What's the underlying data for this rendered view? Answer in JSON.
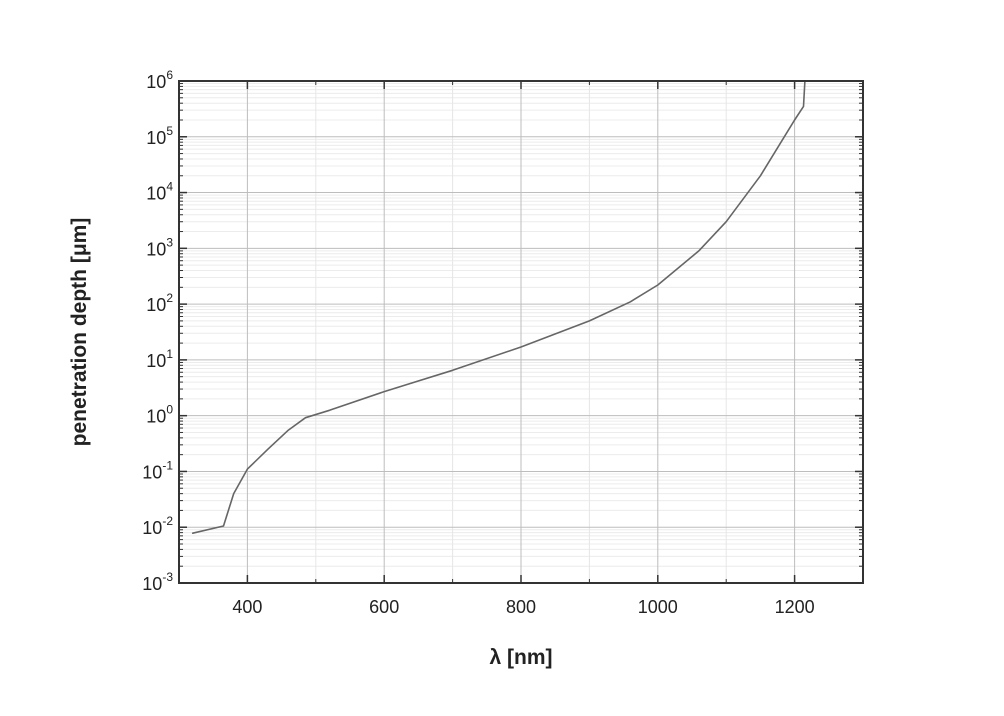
{
  "chart_data": {
    "type": "line",
    "title": "",
    "xlabel": "λ [nm]",
    "ylabel": "penetration depth [μm]",
    "xlim": [
      300,
      1300
    ],
    "ylim": [
      0.001,
      1000000
    ],
    "yscale": "log",
    "grid": true,
    "x_ticks": [
      400,
      600,
      800,
      1000,
      1200
    ],
    "x_tick_labels": [
      "400",
      "600",
      "800",
      "1000",
      "1200"
    ],
    "y_ticks": [
      0.001,
      0.01,
      0.1,
      1,
      10,
      100,
      1000,
      10000,
      100000,
      1000000
    ],
    "y_tick_labels": [
      {
        "base": "10",
        "exp": "-3"
      },
      {
        "base": "10",
        "exp": "-2"
      },
      {
        "base": "10",
        "exp": "-1"
      },
      {
        "base": "10",
        "exp": "0"
      },
      {
        "base": "10",
        "exp": "1"
      },
      {
        "base": "10",
        "exp": "2"
      },
      {
        "base": "10",
        "exp": "3"
      },
      {
        "base": "10",
        "exp": "4"
      },
      {
        "base": "10",
        "exp": "5"
      },
      {
        "base": "10",
        "exp": "6"
      }
    ],
    "series": [
      {
        "color": "#666666",
        "points": [
          [
            320,
            0.0078
          ],
          [
            365,
            0.0105
          ],
          [
            380,
            0.04
          ],
          [
            400,
            0.11
          ],
          [
            430,
            0.25
          ],
          [
            460,
            0.55
          ],
          [
            485,
            0.92
          ],
          [
            520,
            1.25
          ],
          [
            600,
            2.7
          ],
          [
            700,
            6.5
          ],
          [
            800,
            17
          ],
          [
            900,
            50
          ],
          [
            960,
            110
          ],
          [
            1000,
            220
          ],
          [
            1060,
            900
          ],
          [
            1100,
            3000
          ],
          [
            1150,
            20000
          ],
          [
            1200,
            200000
          ],
          [
            1213,
            350000
          ],
          [
            1215,
            1000000
          ]
        ]
      }
    ]
  }
}
